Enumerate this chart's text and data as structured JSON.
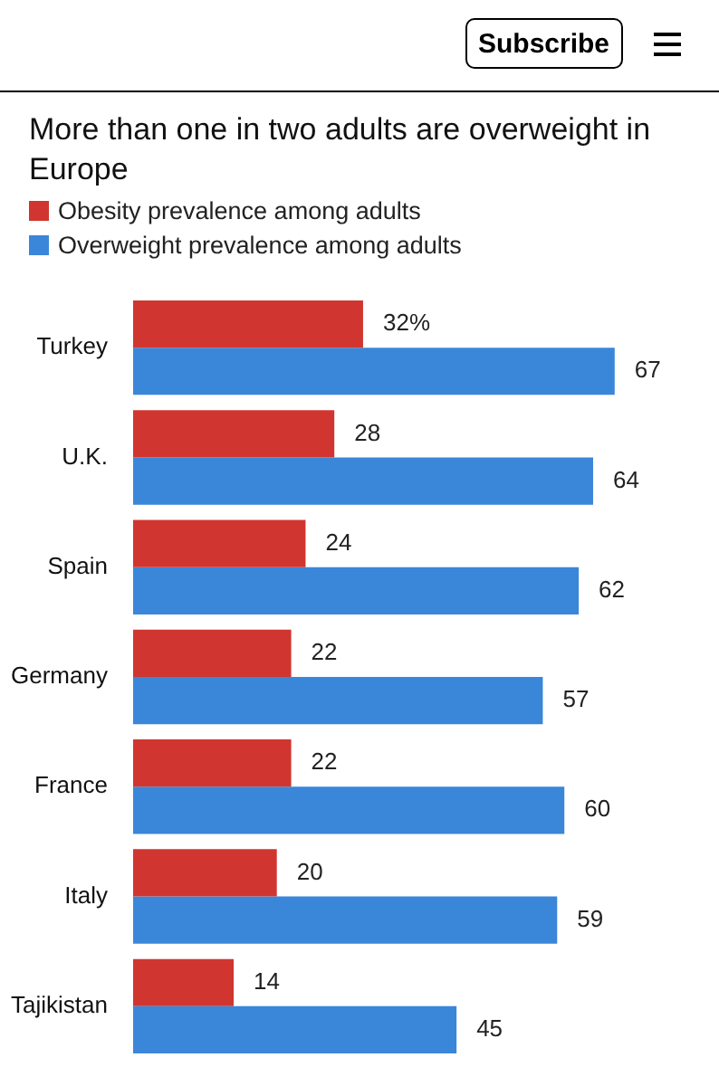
{
  "chart_data": {
    "type": "bar",
    "orientation": "horizontal",
    "title": "More than one in two adults are overweight in Europe",
    "categories": [
      "Turkey",
      "U.K.",
      "Spain",
      "Germany",
      "France",
      "Italy",
      "Tajikistan"
    ],
    "series": [
      {
        "name": "Obesity prevalence among adults",
        "color": "#d0362f",
        "values": [
          32,
          28,
          24,
          22,
          22,
          20,
          14
        ],
        "value_labels": [
          "32%",
          "28",
          "24",
          "22",
          "22",
          "20",
          "14"
        ]
      },
      {
        "name": "Overweight prevalence among adults",
        "color": "#3a86d9",
        "values": [
          67,
          64,
          62,
          57,
          60,
          59,
          45
        ],
        "value_labels": [
          "67",
          "64",
          "62",
          "57",
          "60",
          "59",
          "45"
        ]
      }
    ],
    "legend": "top left",
    "tick_labels": "y",
    "annotations": [
      "Subscribe"
    ]
  }
}
